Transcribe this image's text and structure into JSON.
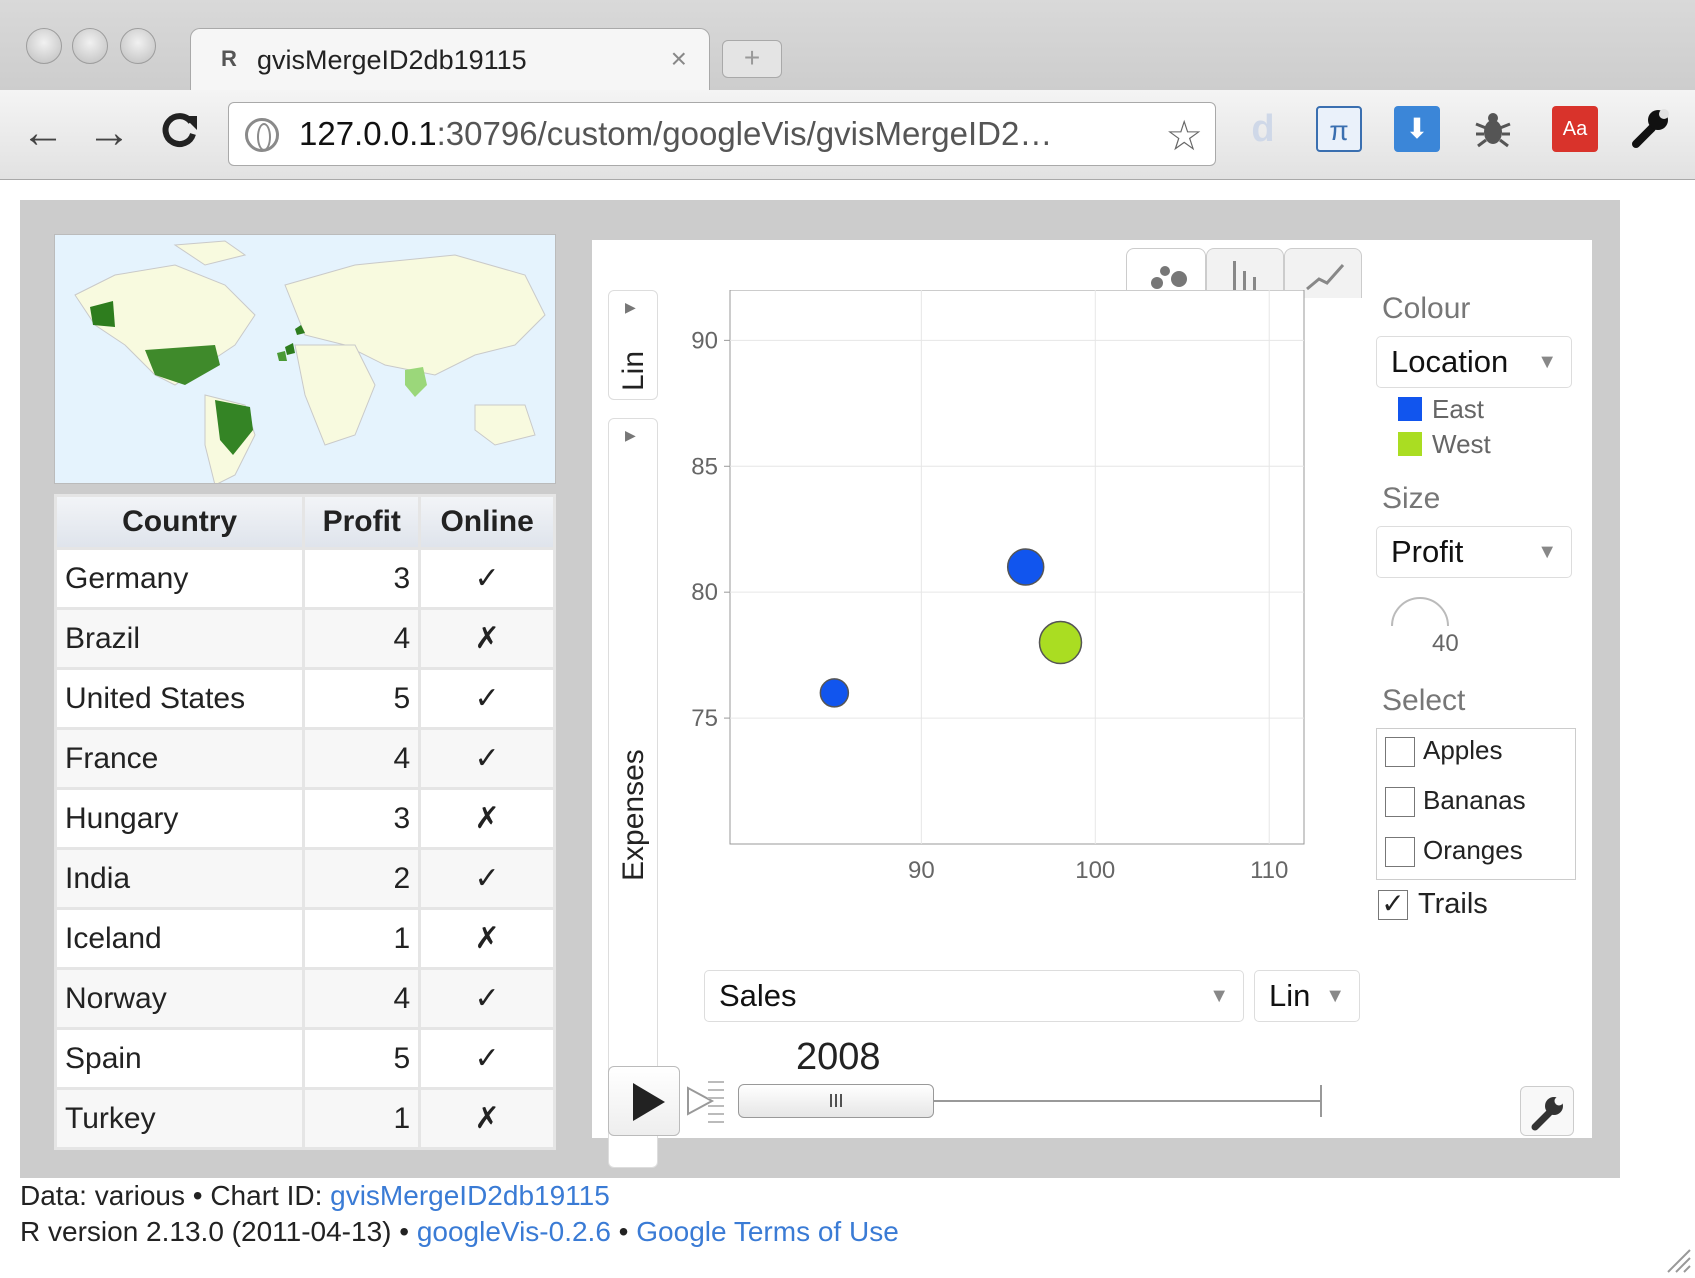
{
  "browser": {
    "tab_title": "gvisMergeID2db19115",
    "tab_favicon": "R",
    "tab_close": "×",
    "new_tab": "+",
    "url_host": "127.0.0.1",
    "url_path": ":30796/custom/googleVis/gvisMergeID2…",
    "back": "←",
    "forward": "→",
    "reload": "C",
    "star": "☆",
    "ext_icons": [
      "d",
      "π",
      "⬇",
      "bug",
      "Aa",
      "wrench"
    ]
  },
  "table": {
    "headers": [
      "Country",
      "Profit",
      "Online"
    ],
    "rows": [
      [
        "Germany",
        "3",
        "✓"
      ],
      [
        "Brazil",
        "4",
        "✗"
      ],
      [
        "United States",
        "5",
        "✓"
      ],
      [
        "France",
        "4",
        "✓"
      ],
      [
        "Hungary",
        "3",
        "✗"
      ],
      [
        "India",
        "2",
        "✓"
      ],
      [
        "Iceland",
        "1",
        "✗"
      ],
      [
        "Norway",
        "4",
        "✓"
      ],
      [
        "Spain",
        "5",
        "✓"
      ],
      [
        "Turkey",
        "1",
        "✗"
      ]
    ]
  },
  "motion": {
    "y_scale": "Lin",
    "y_variable": "Expenses",
    "x_variable": "Sales",
    "x_scale": "Lin",
    "year": "2008",
    "slider_grip": "III",
    "colour_label": "Colour",
    "colour_value": "Location",
    "legend": [
      {
        "name": "East",
        "color": "#1155ee"
      },
      {
        "name": "West",
        "color": "#aadd22"
      }
    ],
    "size_label": "Size",
    "size_value": "Profit",
    "size_scale_value": "40",
    "select_label": "Select",
    "select_items": [
      "Apples",
      "Bananas",
      "Oranges"
    ],
    "trails_label": "Trails",
    "trails_checked": true
  },
  "chart_data": {
    "type": "scatter",
    "xlabel": "Sales",
    "ylabel": "Expenses",
    "xlim": [
      79,
      112
    ],
    "ylim": [
      70,
      92
    ],
    "x_ticks": [
      90,
      100,
      110
    ],
    "y_ticks": [
      75,
      80,
      85,
      90
    ],
    "grid": true,
    "points": [
      {
        "x": 85,
        "y": 76,
        "location": "East",
        "color": "#1155ee",
        "size": "small"
      },
      {
        "x": 96,
        "y": 81,
        "location": "East",
        "color": "#1155ee",
        "size": "medium"
      },
      {
        "x": 98,
        "y": 78,
        "location": "West",
        "color": "#aadd22",
        "size": "large"
      }
    ]
  },
  "footer": {
    "line1_prefix": "Data: various • Chart ID: ",
    "chart_id_link": "gvisMergeID2db19115",
    "line2_prefix": "R version 2.13.0 (2011-04-13) • ",
    "googlevis_link": "googleVis-0.2.6",
    "separator": " • ",
    "terms_link": "Google Terms of Use"
  }
}
